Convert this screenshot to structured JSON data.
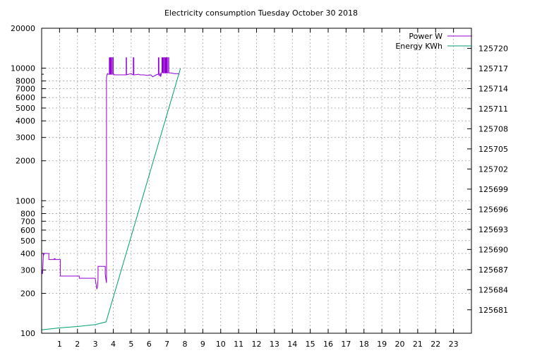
{
  "chart_data": {
    "type": "line",
    "title": "Electricity consumption Tuesday October 30 2018",
    "xlabel": "",
    "ylabel": "",
    "xlim": [
      0,
      24
    ],
    "x_ticks": [
      1,
      2,
      3,
      4,
      5,
      6,
      7,
      8,
      9,
      10,
      11,
      12,
      13,
      14,
      15,
      16,
      17,
      18,
      19,
      20,
      21,
      22,
      23
    ],
    "y_left": {
      "scale": "log",
      "ylim": [
        100,
        20000
      ],
      "ticks": [
        100,
        200,
        300,
        400,
        500,
        600,
        700,
        800,
        1000,
        2000,
        3000,
        4000,
        5000,
        6000,
        7000,
        8000,
        10000,
        20000
      ]
    },
    "y_right": {
      "scale": "linear",
      "ylim": [
        125677.5,
        125723
      ],
      "ticks": [
        125681,
        125684,
        125687,
        125690,
        125693,
        125696,
        125699,
        125702,
        125705,
        125708,
        125711,
        125714,
        125717,
        125720
      ]
    },
    "grid": true,
    "legend_position": "top-right",
    "series": [
      {
        "name": "Power W",
        "axis": "left",
        "color": "#9400d3",
        "x": [
          0,
          0.05,
          0.1,
          0.12,
          0.15,
          0.4,
          0.4,
          0.7,
          0.7,
          0.75,
          0.75,
          1.05,
          1.05,
          2.1,
          2.1,
          3.0,
          3.0,
          3.05,
          3.08,
          3.12,
          3.15,
          3.15,
          3.55,
          3.55,
          3.6,
          3.62,
          3.62,
          3.66,
          3.68,
          3.7,
          3.78,
          3.78,
          3.82,
          3.82,
          3.86,
          3.86,
          3.9,
          3.9,
          3.95,
          3.95,
          4.0,
          4.0,
          4.05,
          4.05,
          4.1,
          4.3,
          4.7,
          4.72,
          4.72,
          4.74,
          4.74,
          5.0,
          5.05,
          5.1,
          5.12,
          5.12,
          5.15,
          5.15,
          5.2,
          5.4,
          5.5,
          5.7,
          5.9,
          6.1,
          6.2,
          6.4,
          6.5,
          6.52,
          6.52,
          6.55,
          6.55,
          6.6,
          6.62,
          6.65,
          6.7,
          6.72,
          6.72,
          6.76,
          6.76,
          6.8,
          6.8,
          6.85,
          6.85,
          6.88,
          6.88,
          6.92,
          6.92,
          6.96,
          6.96,
          7.0,
          7.0,
          7.05,
          7.05,
          7.1,
          7.1,
          7.2,
          7.4,
          7.6,
          7.7
        ],
        "values": [
          300,
          280,
          400,
          390,
          400,
          400,
          360,
          360,
          365,
          365,
          360,
          360,
          270,
          270,
          260,
          260,
          255,
          230,
          215,
          225,
          255,
          320,
          320,
          280,
          250,
          240,
          8500,
          9000,
          9100,
          9000,
          9000,
          12000,
          12000,
          9000,
          9000,
          12000,
          12000,
          9000,
          9000,
          12000,
          12000,
          9000,
          9000,
          8900,
          8900,
          8900,
          8900,
          8900,
          12000,
          12000,
          8900,
          9100,
          9000,
          8900,
          8900,
          12000,
          12000,
          8900,
          8900,
          9000,
          8900,
          8900,
          8800,
          8900,
          8600,
          8900,
          9000,
          9000,
          12000,
          12000,
          8800,
          8800,
          9200,
          8600,
          9300,
          9300,
          12000,
          12000,
          9200,
          9200,
          12000,
          12000,
          9200,
          9200,
          12000,
          12000,
          9200,
          9200,
          12000,
          12000,
          9200,
          9200,
          12000,
          12000,
          9200,
          9200,
          9100,
          9100,
          9000
        ]
      },
      {
        "name": "Energy KWh",
        "axis": "right",
        "color": "#009e73",
        "x": [
          0,
          1,
          2,
          3,
          3.6,
          7.75
        ],
        "values": [
          125678.0,
          125678.3,
          125678.5,
          125678.8,
          125679.2,
          125717.0
        ]
      }
    ]
  }
}
